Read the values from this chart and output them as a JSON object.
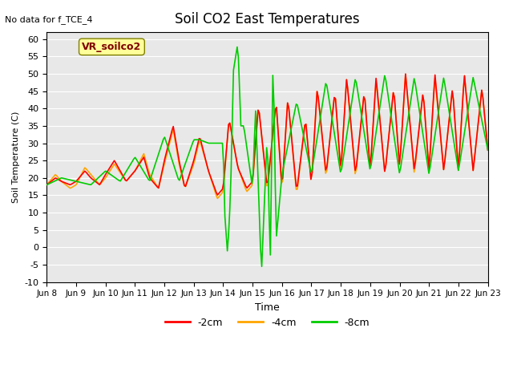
{
  "title": "Soil CO2 East Temperatures",
  "no_data_text": "No data for f_TCE_4",
  "ylabel": "Soil Temperature (C)",
  "xlabel": "Time",
  "ylim": [
    -10,
    62
  ],
  "yticks": [
    -10,
    -5,
    0,
    5,
    10,
    15,
    20,
    25,
    30,
    35,
    40,
    45,
    50,
    55,
    60
  ],
  "xtick_labels": [
    "Jun 8",
    "Jun 9",
    "Jun 10",
    "Jun 11",
    "Jun 12",
    "Jun 13",
    "Jun 14",
    "Jun 15",
    "Jun 16",
    "Jun 17",
    "Jun 18",
    "Jun 19",
    "Jun 20",
    "Jun 21",
    "Jun 22",
    "Jun 23"
  ],
  "bg_color": "#e8e8e8",
  "plot_bg_color": "#e8e8e8",
  "color_2cm": "#ff0000",
  "color_4cm": "#ffa500",
  "color_8cm": "#00cc00",
  "legend_label_2cm": "-2cm",
  "legend_label_4cm": "-4cm",
  "legend_label_8cm": "-8cm",
  "vr_soilco2_box_color": "#ffff99",
  "vr_soilco2_text_color": "#800000",
  "vr_soilco2_label": "VR_soilco2",
  "grid_color": "#ffffff",
  "line_width": 1.2
}
